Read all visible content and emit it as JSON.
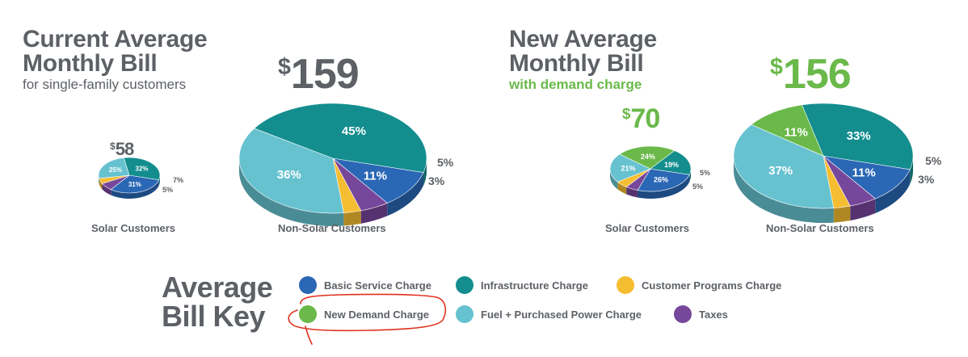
{
  "colors": {
    "basic": "#2a67b5",
    "infrastructure": "#138d8e",
    "programs": "#f5bd31",
    "demand": "#6ab94a",
    "fuel": "#67c2d0",
    "taxes": "#77479b",
    "heading_gray": "#5d6166",
    "accent_green": "#6ab94a"
  },
  "current": {
    "title_line1": "Current Average",
    "title_line2": "Monthly Bill",
    "subtitle": "for single-family customers"
  },
  "new": {
    "title_line1": "New Average",
    "title_line2": "Monthly Bill",
    "subtitle": "with demand charge"
  },
  "chart_data": [
    {
      "type": "pie",
      "title": "Current Average Monthly Bill — Solar Customers",
      "total": "$58",
      "total_value": 58,
      "label": "Solar Customers",
      "slices": [
        {
          "name": "Basic Service Charge",
          "value": 31,
          "label": "31%"
        },
        {
          "name": "Taxes",
          "value": 7,
          "label": "7%"
        },
        {
          "name": "Customer Programs Charge",
          "value": 5,
          "label": "5%"
        },
        {
          "name": "Fuel + Purchased Power Charge",
          "value": 25,
          "label": "25%"
        },
        {
          "name": "Infrastructure Charge",
          "value": 32,
          "label": "32%"
        }
      ]
    },
    {
      "type": "pie",
      "title": "Current Average Monthly Bill — Non-Solar Customers",
      "total": "$159",
      "total_value": 159,
      "label": "Non-Solar Customers",
      "slices": [
        {
          "name": "Basic Service Charge",
          "value": 11,
          "label": "11%"
        },
        {
          "name": "Taxes",
          "value": 5,
          "label": "5%"
        },
        {
          "name": "Customer Programs Charge",
          "value": 3,
          "label": "3%"
        },
        {
          "name": "Fuel + Purchased Power Charge",
          "value": 36,
          "label": "36%"
        },
        {
          "name": "Infrastructure Charge",
          "value": 45,
          "label": "45%"
        }
      ]
    },
    {
      "type": "pie",
      "title": "New Average Monthly Bill — Solar Customers",
      "total": "$70",
      "total_value": 70,
      "label": "Solar Customers",
      "slices": [
        {
          "name": "Basic Service Charge",
          "value": 26,
          "label": "26%"
        },
        {
          "name": "Taxes",
          "value": 5,
          "label": "5%"
        },
        {
          "name": "Customer Programs Charge",
          "value": 5,
          "label": "5%"
        },
        {
          "name": "Fuel + Purchased Power Charge",
          "value": 21,
          "label": "21%"
        },
        {
          "name": "New Demand Charge",
          "value": 24,
          "label": "24%"
        },
        {
          "name": "Infrastructure Charge",
          "value": 19,
          "label": "19%"
        }
      ]
    },
    {
      "type": "pie",
      "title": "New Average Monthly Bill — Non-Solar Customers",
      "total": "$156",
      "total_value": 156,
      "label": "Non-Solar Customers",
      "slices": [
        {
          "name": "Basic Service Charge",
          "value": 11,
          "label": "11%"
        },
        {
          "name": "Taxes",
          "value": 5,
          "label": "5%"
        },
        {
          "name": "Customer Programs Charge",
          "value": 3,
          "label": "3%"
        },
        {
          "name": "Fuel + Purchased Power Charge",
          "value": 37,
          "label": "37%"
        },
        {
          "name": "New Demand Charge",
          "value": 11,
          "label": "11%"
        },
        {
          "name": "Infrastructure Charge",
          "value": 33,
          "label": "33%"
        }
      ]
    }
  ],
  "key": {
    "title_line1": "Average",
    "title_line2": "Bill Key",
    "items": [
      {
        "label": "Basic Service Charge",
        "color": "#2a67b5"
      },
      {
        "label": "Infrastructure Charge",
        "color": "#138d8e"
      },
      {
        "label": "Customer Programs Charge",
        "color": "#f5bd31"
      },
      {
        "label": "New Demand Charge",
        "color": "#6ab94a"
      },
      {
        "label": "Fuel + Purchased Power Charge",
        "color": "#67c2d0"
      },
      {
        "label": "Taxes",
        "color": "#77479b"
      }
    ],
    "highlight_color": "#e0301e"
  }
}
